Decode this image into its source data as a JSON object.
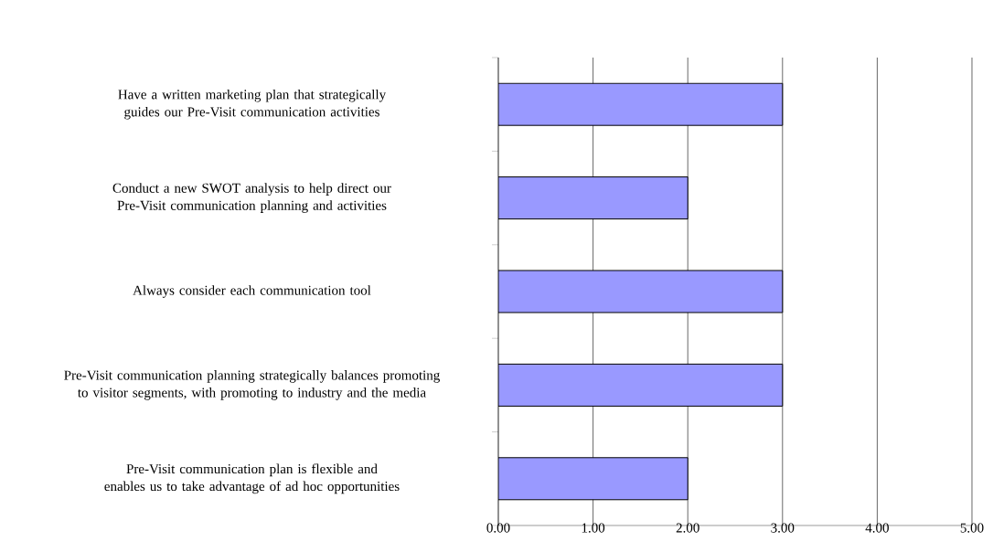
{
  "chart_data": {
    "type": "bar",
    "orientation": "horizontal",
    "categories": [
      "Have a written marketing plan that strategically guides our Pre-Visit communication activities",
      "Conduct a new SWOT analysis to help direct our Pre-Visit communication planning and activities",
      "Always consider each communication tool",
      "Pre-Visit communication planning strategically balances promoting to visitor segments, with promoting to industry and the media",
      "Pre-Visit communication plan is flexible and enables us to take advantage of ad hoc opportunities"
    ],
    "values": [
      3,
      2,
      3,
      3,
      2
    ],
    "color": "#9999ff",
    "xlim": [
      0,
      5
    ],
    "xticks": [
      {
        "value": 0,
        "label": "0.00"
      },
      {
        "value": 1,
        "label": "1.00"
      },
      {
        "value": 2,
        "label": "2.00"
      },
      {
        "value": 3,
        "label": "3.00"
      },
      {
        "value": 4,
        "label": "4.00"
      },
      {
        "value": 5,
        "label": "5.00"
      }
    ],
    "grid": "x"
  }
}
